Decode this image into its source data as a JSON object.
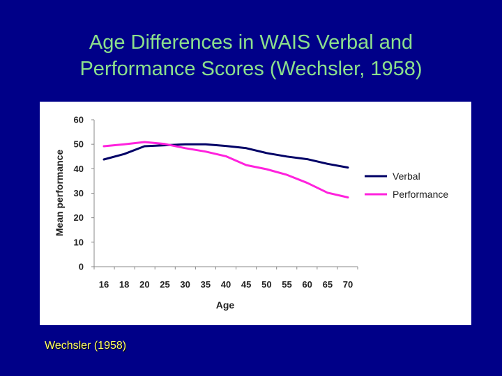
{
  "slide": {
    "title_line1": "Age Differences in WAIS Verbal and",
    "title_line2": "Performance Scores (Wechsler, 1958)",
    "citation": "Wechsler (1958)"
  },
  "colors": {
    "background": "#000088",
    "title": "#8CE08C",
    "citation": "#FFFF66",
    "verbal": "#000066",
    "performance": "#FF22DD"
  },
  "chart_data": {
    "type": "line",
    "xlabel": "Age",
    "ylabel": "Mean performance",
    "categories": [
      "16",
      "18",
      "20",
      "25",
      "30",
      "35",
      "40",
      "45",
      "50",
      "55",
      "60",
      "65",
      "70"
    ],
    "yticks": [
      0,
      10,
      20,
      30,
      40,
      50,
      60
    ],
    "ylim": [
      0,
      60
    ],
    "grid": false,
    "legend": "right",
    "series": [
      {
        "name": "Verbal",
        "color": "#000066",
        "values": [
          43.8,
          46,
          49.2,
          49.6,
          50,
          50,
          49.3,
          48.4,
          46.4,
          45,
          43.9,
          42,
          40.5
        ]
      },
      {
        "name": "Performance",
        "color": "#FF22DD",
        "values": [
          49.2,
          50,
          50.9,
          50.1,
          48.4,
          47,
          45.1,
          41.5,
          39.8,
          37.5,
          34.2,
          30.2,
          28.3
        ]
      }
    ]
  }
}
